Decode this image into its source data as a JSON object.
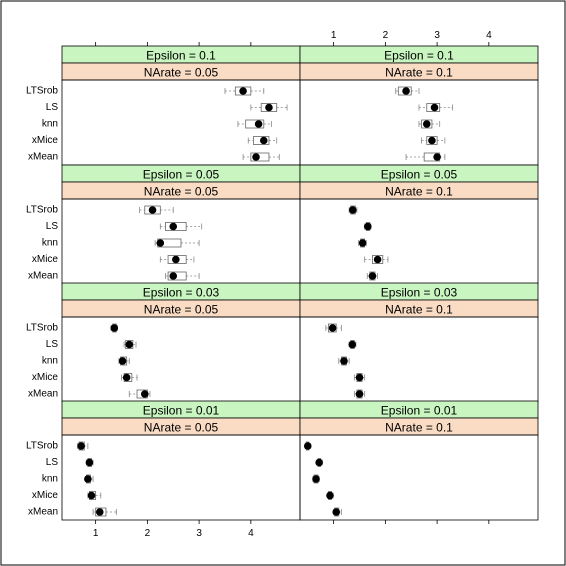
{
  "chart_data": {
    "type": "boxplot",
    "title": "",
    "xlabel": "",
    "ylabel": "",
    "xlim": [
      0.35,
      4.95
    ],
    "xticks": [
      1,
      2,
      3,
      4
    ],
    "methods": [
      "LTSrob",
      "LS",
      "knn",
      "xMice",
      "xMean"
    ],
    "panels": [
      {
        "strip_top": "Epsilon = 0.1",
        "strip_bottom": "NArate = 0.05",
        "boxes": [
          {
            "method": "LTSrob",
            "min": 3.5,
            "q1": 3.7,
            "median": 3.85,
            "q3": 4.0,
            "max": 4.25
          },
          {
            "method": "LS",
            "min": 4.0,
            "q1": 4.2,
            "median": 4.35,
            "q3": 4.5,
            "max": 4.7
          },
          {
            "method": "knn",
            "min": 3.75,
            "q1": 3.9,
            "median": 4.15,
            "q3": 4.25,
            "max": 4.4
          },
          {
            "method": "xMice",
            "min": 3.95,
            "q1": 4.05,
            "median": 4.25,
            "q3": 4.35,
            "max": 4.5
          },
          {
            "method": "xMean",
            "min": 3.85,
            "q1": 4.0,
            "median": 4.1,
            "q3": 4.35,
            "max": 4.55
          }
        ]
      },
      {
        "strip_top": "Epsilon = 0.1",
        "strip_bottom": "NArate = 0.1",
        "boxes": [
          {
            "method": "LTSrob",
            "min": 2.2,
            "q1": 2.25,
            "median": 2.4,
            "q3": 2.5,
            "max": 2.65
          },
          {
            "method": "LS",
            "min": 2.65,
            "q1": 2.8,
            "median": 2.95,
            "q3": 3.05,
            "max": 3.3
          },
          {
            "method": "knn",
            "min": 2.65,
            "q1": 2.7,
            "median": 2.8,
            "q3": 2.9,
            "max": 3.05
          },
          {
            "method": "xMice",
            "min": 2.7,
            "q1": 2.8,
            "median": 2.9,
            "q3": 3.0,
            "max": 3.15
          },
          {
            "method": "xMean",
            "min": 2.4,
            "q1": 2.75,
            "median": 3.0,
            "q3": 3.05,
            "max": 3.15
          }
        ]
      },
      {
        "strip_top": "Epsilon = 0.05",
        "strip_bottom": "NArate = 0.05",
        "boxes": [
          {
            "method": "LTSrob",
            "min": 1.85,
            "q1": 1.95,
            "median": 2.1,
            "q3": 2.25,
            "max": 2.5
          },
          {
            "method": "LS",
            "min": 2.25,
            "q1": 2.35,
            "median": 2.5,
            "q3": 2.75,
            "max": 3.05
          },
          {
            "method": "knn",
            "min": 2.15,
            "q1": 2.2,
            "median": 2.25,
            "q3": 2.65,
            "max": 3.0
          },
          {
            "method": "xMice",
            "min": 2.25,
            "q1": 2.4,
            "median": 2.55,
            "q3": 2.75,
            "max": 2.9
          },
          {
            "method": "xMean",
            "min": 2.35,
            "q1": 2.4,
            "median": 2.5,
            "q3": 2.75,
            "max": 3.0
          }
        ]
      },
      {
        "strip_top": "Epsilon = 0.05",
        "strip_bottom": "NArate = 0.1",
        "boxes": [
          {
            "method": "LTSrob",
            "min": 1.3,
            "q1": 1.33,
            "median": 1.37,
            "q3": 1.42,
            "max": 1.45
          },
          {
            "method": "LS",
            "min": 1.6,
            "q1": 1.63,
            "median": 1.66,
            "q3": 1.7,
            "max": 1.72
          },
          {
            "method": "knn",
            "min": 1.48,
            "q1": 1.52,
            "median": 1.56,
            "q3": 1.6,
            "max": 1.63
          },
          {
            "method": "xMice",
            "min": 1.6,
            "q1": 1.75,
            "median": 1.85,
            "q3": 1.95,
            "max": 2.05
          },
          {
            "method": "xMean",
            "min": 1.65,
            "q1": 1.7,
            "median": 1.75,
            "q3": 1.8,
            "max": 1.85
          }
        ]
      },
      {
        "strip_top": "Epsilon = 0.03",
        "strip_bottom": "NArate = 0.05",
        "boxes": [
          {
            "method": "LTSrob",
            "min": 1.3,
            "q1": 1.33,
            "median": 1.36,
            "q3": 1.4,
            "max": 1.42
          },
          {
            "method": "LS",
            "min": 1.55,
            "q1": 1.58,
            "median": 1.65,
            "q3": 1.72,
            "max": 1.78
          },
          {
            "method": "knn",
            "min": 1.45,
            "q1": 1.48,
            "median": 1.52,
            "q3": 1.6,
            "max": 1.65
          },
          {
            "method": "xMice",
            "min": 1.5,
            "q1": 1.55,
            "median": 1.6,
            "q3": 1.7,
            "max": 1.8
          },
          {
            "method": "xMean",
            "min": 1.65,
            "q1": 1.8,
            "median": 1.95,
            "q3": 2.0,
            "max": 2.05
          }
        ]
      },
      {
        "strip_top": "Epsilon = 0.03",
        "strip_bottom": "NArate = 0.1",
        "boxes": [
          {
            "method": "LTSrob",
            "min": 0.85,
            "q1": 0.9,
            "median": 0.98,
            "q3": 1.05,
            "max": 1.15
          },
          {
            "method": "LS",
            "min": 1.3,
            "q1": 1.33,
            "median": 1.36,
            "q3": 1.4,
            "max": 1.43
          },
          {
            "method": "knn",
            "min": 1.1,
            "q1": 1.15,
            "median": 1.2,
            "q3": 1.25,
            "max": 1.3
          },
          {
            "method": "xMice",
            "min": 1.4,
            "q1": 1.45,
            "median": 1.5,
            "q3": 1.55,
            "max": 1.6
          },
          {
            "method": "xMean",
            "min": 1.4,
            "q1": 1.45,
            "median": 1.5,
            "q3": 1.55,
            "max": 1.6
          }
        ]
      },
      {
        "strip_top": "Epsilon = 0.01",
        "strip_bottom": "NArate = 0.05",
        "boxes": [
          {
            "method": "LTSrob",
            "min": 0.65,
            "q1": 0.68,
            "median": 0.72,
            "q3": 0.78,
            "max": 0.85
          },
          {
            "method": "LS",
            "min": 0.82,
            "q1": 0.85,
            "median": 0.88,
            "q3": 0.92,
            "max": 0.95
          },
          {
            "method": "knn",
            "min": 0.8,
            "q1": 0.82,
            "median": 0.85,
            "q3": 0.9,
            "max": 0.95
          },
          {
            "method": "xMice",
            "min": 0.85,
            "q1": 0.88,
            "median": 0.92,
            "q3": 1.0,
            "max": 1.1
          },
          {
            "method": "xMean",
            "min": 0.95,
            "q1": 1.0,
            "median": 1.08,
            "q3": 1.2,
            "max": 1.4
          }
        ]
      },
      {
        "strip_top": "Epsilon = 0.01",
        "strip_bottom": "NArate = 0.1",
        "boxes": [
          {
            "method": "LTSrob",
            "min": 0.45,
            "q1": 0.47,
            "median": 0.5,
            "q3": 0.52,
            "max": 0.55
          },
          {
            "method": "LS",
            "min": 0.68,
            "q1": 0.7,
            "median": 0.72,
            "q3": 0.75,
            "max": 0.78
          },
          {
            "method": "knn",
            "min": 0.6,
            "q1": 0.62,
            "median": 0.66,
            "q3": 0.7,
            "max": 0.72
          },
          {
            "method": "xMice",
            "min": 0.88,
            "q1": 0.9,
            "median": 0.93,
            "q3": 0.96,
            "max": 0.99
          },
          {
            "method": "xMean",
            "min": 1.0,
            "q1": 1.02,
            "median": 1.05,
            "q3": 1.1,
            "max": 1.15
          }
        ]
      }
    ]
  }
}
